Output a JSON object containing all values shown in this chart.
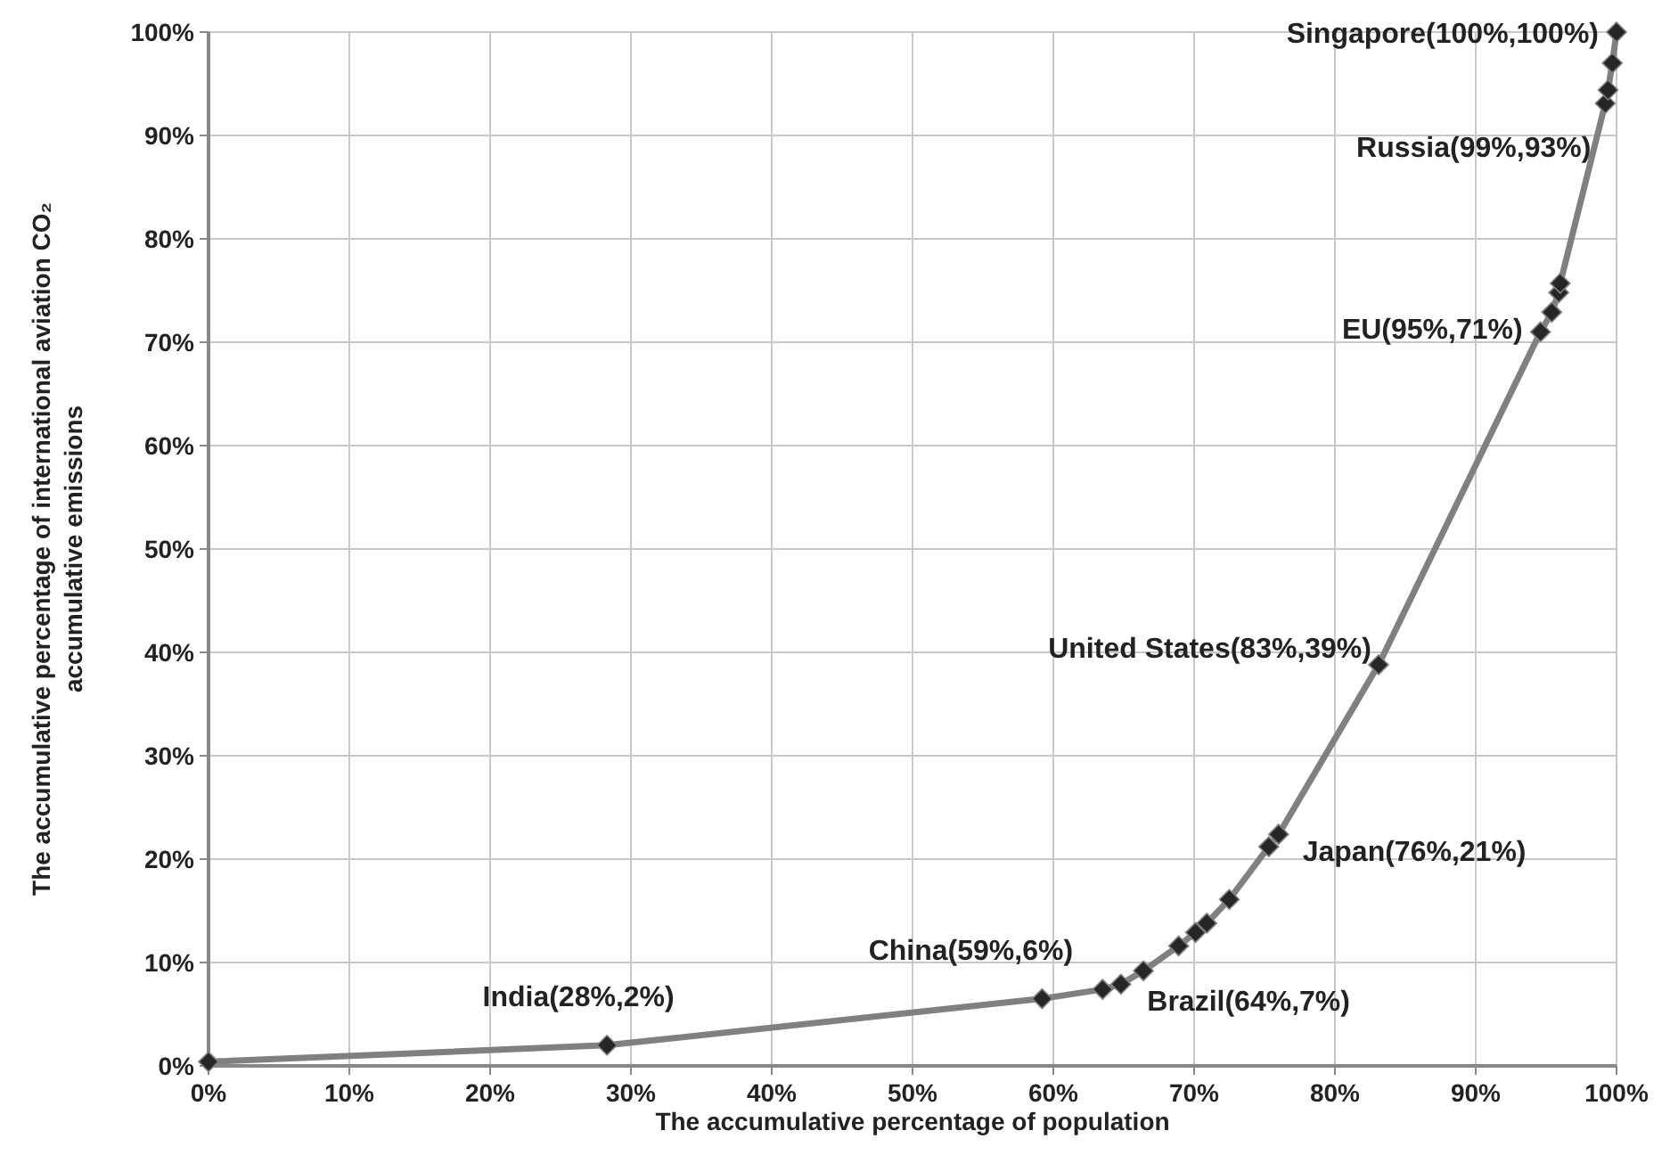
{
  "chart_data": {
    "type": "line",
    "xlabel": "The accumulative  percentage of  population",
    "ylabel": "The accumulative  percentage of international aviation CO₂\naccumulative  emissions",
    "x": [
      0,
      28.3,
      59.2,
      63.5,
      64.8,
      66.4,
      68.9,
      70.1,
      70.9,
      72.5,
      75.3,
      76.0,
      83.1,
      94.6,
      95.4,
      95.9,
      96.0,
      99.2,
      99.4,
      99.7,
      100
    ],
    "series": [
      {
        "color": "#808080",
        "values": [
          0.4,
          2.0,
          6.5,
          7.4,
          7.9,
          9.2,
          11.6,
          12.9,
          13.8,
          16.1,
          21.2,
          22.4,
          38.8,
          71.0,
          72.9,
          74.8,
          75.7,
          93.1,
          94.4,
          97.0,
          100
        ]
      }
    ],
    "xlim": [
      0,
      100
    ],
    "ylim": [
      0,
      100
    ],
    "xticks": [
      {
        "value": 0,
        "label": "0%"
      },
      {
        "value": 10,
        "label": "10%"
      },
      {
        "value": 20,
        "label": "20%"
      },
      {
        "value": 30,
        "label": "30%"
      },
      {
        "value": 40,
        "label": "40%"
      },
      {
        "value": 50,
        "label": "50%"
      },
      {
        "value": 60,
        "label": "60%"
      },
      {
        "value": 70,
        "label": "70%"
      },
      {
        "value": 80,
        "label": "80%"
      },
      {
        "value": 90,
        "label": "90%"
      },
      {
        "value": 100,
        "label": "100%"
      }
    ],
    "yticks": [
      {
        "value": 0,
        "label": "0%"
      },
      {
        "value": 10,
        "label": "10%"
      },
      {
        "value": 20,
        "label": "20%"
      },
      {
        "value": 30,
        "label": "30%"
      },
      {
        "value": 40,
        "label": "40%"
      },
      {
        "value": 50,
        "label": "50%"
      },
      {
        "value": 60,
        "label": "60%"
      },
      {
        "value": 70,
        "label": "70%"
      },
      {
        "value": 80,
        "label": "80%"
      },
      {
        "value": 90,
        "label": "90%"
      },
      {
        "value": 100,
        "label": "100%"
      }
    ],
    "grid": true,
    "marker": "diamond",
    "line_style": "solid",
    "annotations": [
      {
        "text": "India(28%,2%)",
        "x": 28.3,
        "y": 2.0
      },
      {
        "text": "China(59%,6%)",
        "x": 59.2,
        "y": 6.5
      },
      {
        "text": "Brazil(64%,7%)",
        "x": 63.5,
        "y": 7.4
      },
      {
        "text": "Japan(76%,21%)",
        "x": 75.3,
        "y": 21.2
      },
      {
        "text": "United States(83%,39%)",
        "x": 83.1,
        "y": 38.8
      },
      {
        "text": "EU(95%,71%)",
        "x": 94.6,
        "y": 71.0
      },
      {
        "text": "Russia(99%,93%)",
        "x": 99.2,
        "y": 93.1
      },
      {
        "text": "Singapore(100%,100%)",
        "x": 100,
        "y": 100
      }
    ]
  }
}
